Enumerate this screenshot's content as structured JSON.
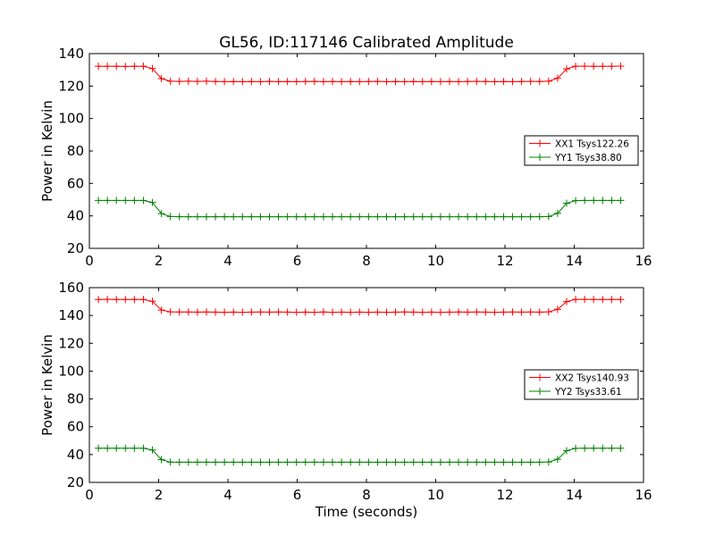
{
  "title": "GL56, ID:117146 Calibrated Amplitude",
  "chart_data": [
    {
      "type": "line",
      "title": "GL56, ID:117146 Calibrated Amplitude",
      "xlabel": "",
      "ylabel": "Power in Kelvin",
      "xlim": [
        0,
        16
      ],
      "ylim": [
        20,
        140
      ],
      "xticks": [
        "0",
        "2",
        "4",
        "6",
        "8",
        "10",
        "12",
        "14",
        "16"
      ],
      "yticks": [
        "20",
        "40",
        "60",
        "80",
        "100",
        "120",
        "140"
      ],
      "grid": false,
      "legend_position": "right",
      "series": [
        {
          "name": "XX1 Tsys122.26",
          "color": "#ff0000",
          "marker": "+",
          "x": [
            0.26,
            0.52,
            0.78,
            1.04,
            1.3,
            1.56,
            1.82,
            2.08,
            2.34,
            2.6,
            2.86,
            3.12,
            3.38,
            3.64,
            3.9,
            4.16,
            4.42,
            4.68,
            4.94,
            5.2,
            5.46,
            5.72,
            5.98,
            6.24,
            6.5,
            6.76,
            7.02,
            7.28,
            7.54,
            7.8,
            8.06,
            8.32,
            8.58,
            8.84,
            9.1,
            9.36,
            9.62,
            9.88,
            10.14,
            10.4,
            10.66,
            10.92,
            11.18,
            11.44,
            11.7,
            11.96,
            12.22,
            12.48,
            12.74,
            13.0,
            13.26,
            13.52,
            13.78,
            14.04,
            14.3,
            14.56,
            14.82,
            15.08,
            15.34
          ],
          "y": [
            132.2,
            132.2,
            132.2,
            132.1,
            132.2,
            132.2,
            130.8,
            124.6,
            123.0,
            122.9,
            123.0,
            122.9,
            123.0,
            122.8,
            122.7,
            122.8,
            122.7,
            122.8,
            122.7,
            122.9,
            122.7,
            122.8,
            122.7,
            122.8,
            122.9,
            122.7,
            122.8,
            122.7,
            122.8,
            122.7,
            122.8,
            122.9,
            122.7,
            122.8,
            122.7,
            122.8,
            122.7,
            122.8,
            122.7,
            122.8,
            122.7,
            122.8,
            122.9,
            122.8,
            122.7,
            122.8,
            122.7,
            122.8,
            122.9,
            122.8,
            123.0,
            124.8,
            130.6,
            132.2,
            132.3,
            132.2,
            132.2,
            132.2,
            132.3
          ]
        },
        {
          "name": "YY1 Tsys38.80",
          "color": "#008000",
          "marker": "+",
          "x": [
            0.26,
            0.52,
            0.78,
            1.04,
            1.3,
            1.56,
            1.82,
            2.08,
            2.34,
            2.6,
            2.86,
            3.12,
            3.38,
            3.64,
            3.9,
            4.16,
            4.42,
            4.68,
            4.94,
            5.2,
            5.46,
            5.72,
            5.98,
            6.24,
            6.5,
            6.76,
            7.02,
            7.28,
            7.54,
            7.8,
            8.06,
            8.32,
            8.58,
            8.84,
            9.1,
            9.36,
            9.62,
            9.88,
            10.14,
            10.4,
            10.66,
            10.92,
            11.18,
            11.44,
            11.7,
            11.96,
            12.22,
            12.48,
            12.74,
            13.0,
            13.26,
            13.52,
            13.78,
            14.04,
            14.3,
            14.56,
            14.82,
            15.08,
            15.34
          ],
          "y": [
            49.5,
            49.5,
            49.5,
            49.5,
            49.5,
            49.5,
            48.3,
            41.4,
            39.6,
            39.5,
            39.5,
            39.5,
            39.5,
            39.5,
            39.5,
            39.5,
            39.5,
            39.5,
            39.5,
            39.5,
            39.5,
            39.5,
            39.5,
            39.5,
            39.5,
            39.5,
            39.5,
            39.5,
            39.5,
            39.5,
            39.5,
            39.5,
            39.5,
            39.5,
            39.5,
            39.5,
            39.5,
            39.5,
            39.5,
            39.5,
            39.5,
            39.5,
            39.5,
            39.5,
            39.5,
            39.5,
            39.5,
            39.5,
            39.5,
            39.5,
            39.6,
            41.6,
            47.8,
            49.4,
            49.5,
            49.5,
            49.5,
            49.5,
            49.5
          ]
        }
      ]
    },
    {
      "type": "line",
      "title": "",
      "xlabel": "Time (seconds)",
      "ylabel": "Power in Kelvin",
      "xlim": [
        0,
        16
      ],
      "ylim": [
        20,
        160
      ],
      "xticks": [
        "0",
        "2",
        "4",
        "6",
        "8",
        "10",
        "12",
        "14",
        "16"
      ],
      "yticks": [
        "20",
        "40",
        "60",
        "80",
        "100",
        "120",
        "140",
        "160"
      ],
      "grid": false,
      "legend_position": "right",
      "series": [
        {
          "name": "XX2 Tsys140.93",
          "color": "#ff0000",
          "marker": "+",
          "x": [
            0.26,
            0.52,
            0.78,
            1.04,
            1.3,
            1.56,
            1.82,
            2.08,
            2.34,
            2.6,
            2.86,
            3.12,
            3.38,
            3.64,
            3.9,
            4.16,
            4.42,
            4.68,
            4.94,
            5.2,
            5.46,
            5.72,
            5.98,
            6.24,
            6.5,
            6.76,
            7.02,
            7.28,
            7.54,
            7.8,
            8.06,
            8.32,
            8.58,
            8.84,
            9.1,
            9.36,
            9.62,
            9.88,
            10.14,
            10.4,
            10.66,
            10.92,
            11.18,
            11.44,
            11.7,
            11.96,
            12.22,
            12.48,
            12.74,
            13.0,
            13.26,
            13.52,
            13.78,
            14.04,
            14.3,
            14.56,
            14.82,
            15.08,
            15.34
          ],
          "y": [
            151.5,
            151.6,
            151.5,
            151.5,
            151.5,
            151.5,
            150.2,
            143.9,
            142.6,
            142.5,
            142.5,
            142.4,
            142.5,
            142.4,
            142.3,
            142.4,
            142.3,
            142.4,
            142.5,
            142.4,
            142.5,
            142.4,
            142.3,
            142.4,
            142.3,
            142.5,
            142.3,
            142.4,
            142.3,
            142.4,
            142.3,
            142.4,
            142.3,
            142.4,
            142.5,
            142.4,
            142.3,
            142.4,
            142.3,
            142.4,
            142.5,
            142.4,
            142.5,
            142.4,
            142.3,
            142.4,
            142.5,
            142.4,
            142.5,
            142.4,
            142.6,
            144.4,
            150.0,
            151.5,
            151.6,
            151.5,
            151.5,
            151.5,
            151.5
          ]
        },
        {
          "name": "YY2 Tsys33.61",
          "color": "#008000",
          "marker": "+",
          "x": [
            0.26,
            0.52,
            0.78,
            1.04,
            1.3,
            1.56,
            1.82,
            2.08,
            2.34,
            2.6,
            2.86,
            3.12,
            3.38,
            3.64,
            3.9,
            4.16,
            4.42,
            4.68,
            4.94,
            5.2,
            5.46,
            5.72,
            5.98,
            6.24,
            6.5,
            6.76,
            7.02,
            7.28,
            7.54,
            7.8,
            8.06,
            8.32,
            8.58,
            8.84,
            9.1,
            9.36,
            9.62,
            9.88,
            10.14,
            10.4,
            10.66,
            10.92,
            11.18,
            11.44,
            11.7,
            11.96,
            12.22,
            12.48,
            12.74,
            13.0,
            13.26,
            13.52,
            13.78,
            14.04,
            14.3,
            14.56,
            14.82,
            15.08,
            15.34
          ],
          "y": [
            44.6,
            44.6,
            44.6,
            44.6,
            44.6,
            44.6,
            43.3,
            36.4,
            34.6,
            34.5,
            34.5,
            34.5,
            34.5,
            34.5,
            34.5,
            34.5,
            34.5,
            34.5,
            34.5,
            34.5,
            34.5,
            34.5,
            34.5,
            34.5,
            34.5,
            34.5,
            34.5,
            34.5,
            34.5,
            34.5,
            34.5,
            34.5,
            34.5,
            34.5,
            34.5,
            34.5,
            34.5,
            34.5,
            34.5,
            34.5,
            34.5,
            34.5,
            34.5,
            34.5,
            34.5,
            34.5,
            34.5,
            34.5,
            34.5,
            34.5,
            34.7,
            36.6,
            42.8,
            44.5,
            44.6,
            44.6,
            44.6,
            44.6,
            44.6
          ]
        }
      ]
    }
  ]
}
